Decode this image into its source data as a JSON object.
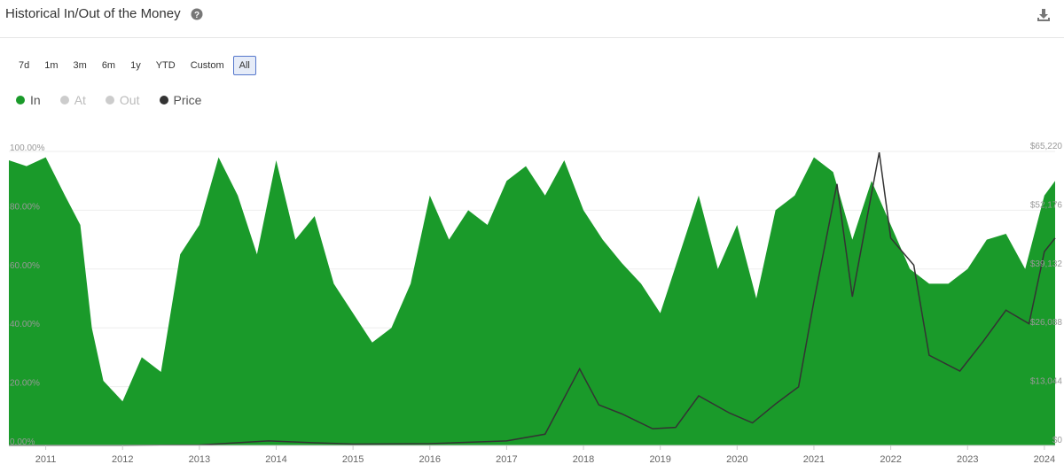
{
  "title": "Historical In/Out of the Money",
  "toolbar": {
    "buttons": [
      "7d",
      "1m",
      "3m",
      "6m",
      "1y",
      "YTD",
      "Custom",
      "All"
    ],
    "selected": 7
  },
  "chart_data": {
    "type": "area",
    "xlim": [
      2010.52,
      2024.14
    ],
    "xticks": [
      2011,
      2012,
      2013,
      2014,
      2015,
      2016,
      2017,
      2018,
      2019,
      2020,
      2021,
      2022,
      2023,
      2024
    ],
    "ylim": [
      0,
      100
    ],
    "yticks": [
      {
        "value": 0,
        "label": "0.00%"
      },
      {
        "value": 20,
        "label": "20.00%"
      },
      {
        "value": 40,
        "label": "40.00%"
      },
      {
        "value": 60,
        "label": "60.00%"
      },
      {
        "value": 80,
        "label": "80.00%"
      },
      {
        "value": 100,
        "label": "100.00%"
      }
    ],
    "y2lim": [
      0,
      65220
    ],
    "y2ticks": [
      {
        "value": 0,
        "label": "$0"
      },
      {
        "value": 13044,
        "label": "$13,044"
      },
      {
        "value": 26088,
        "label": "$26,088"
      },
      {
        "value": 39132,
        "label": "$39,132"
      },
      {
        "value": 52176,
        "label": "$52,176"
      },
      {
        "value": 65220,
        "label": "$65,220"
      }
    ],
    "grid": true,
    "hidden_series": [
      {
        "name": "At",
        "color": "#cccccc"
      },
      {
        "name": "Out",
        "color": "#cccccc"
      }
    ],
    "series": [
      {
        "name": "In",
        "color": "#1a9a2a",
        "x": [
          2010.52,
          2010.75,
          2011.0,
          2011.25,
          2011.45,
          2011.6,
          2011.75,
          2012.0,
          2012.25,
          2012.5,
          2012.75,
          2013.0,
          2013.25,
          2013.5,
          2013.75,
          2014.0,
          2014.25,
          2014.5,
          2014.75,
          2015.0,
          2015.25,
          2015.5,
          2015.75,
          2016.0,
          2016.25,
          2016.5,
          2016.75,
          2017.0,
          2017.25,
          2017.5,
          2017.75,
          2018.0,
          2018.25,
          2018.5,
          2018.75,
          2019.0,
          2019.25,
          2019.5,
          2019.75,
          2020.0,
          2020.25,
          2020.5,
          2020.75,
          2021.0,
          2021.25,
          2021.5,
          2021.75,
          2022.0,
          2022.25,
          2022.5,
          2022.75,
          2023.0,
          2023.25,
          2023.5,
          2023.75,
          2024.0,
          2024.14
        ],
        "values": [
          97,
          95,
          98,
          85,
          75,
          40,
          22,
          15,
          30,
          25,
          65,
          75,
          98,
          85,
          65,
          97,
          70,
          78,
          55,
          45,
          35,
          40,
          55,
          85,
          70,
          80,
          75,
          90,
          95,
          85,
          97,
          80,
          70,
          62,
          55,
          45,
          65,
          85,
          60,
          75,
          50,
          80,
          85,
          98,
          93,
          70,
          90,
          75,
          60,
          55,
          55,
          60,
          70,
          72,
          60,
          85,
          90
        ]
      },
      {
        "name": "Price",
        "color": "#333333",
        "axis": "y2",
        "x": [
          2010.52,
          2012.0,
          2013.0,
          2013.9,
          2014.5,
          2015.0,
          2016.0,
          2017.0,
          2017.5,
          2017.95,
          2018.2,
          2018.5,
          2018.9,
          2019.2,
          2019.5,
          2019.9,
          2020.2,
          2020.5,
          2020.8,
          2021.0,
          2021.3,
          2021.5,
          2021.85,
          2022.0,
          2022.3,
          2022.5,
          2022.9,
          2023.2,
          2023.5,
          2023.8,
          2024.0,
          2024.14
        ],
        "values": [
          0,
          10,
          100,
          1000,
          600,
          300,
          400,
          1000,
          2500,
          17000,
          9000,
          7000,
          3700,
          4000,
          11000,
          7200,
          5000,
          9200,
          13000,
          32000,
          58000,
          33000,
          65000,
          46000,
          40000,
          20000,
          16500,
          23000,
          30000,
          27000,
          43000,
          46000
        ]
      }
    ]
  }
}
